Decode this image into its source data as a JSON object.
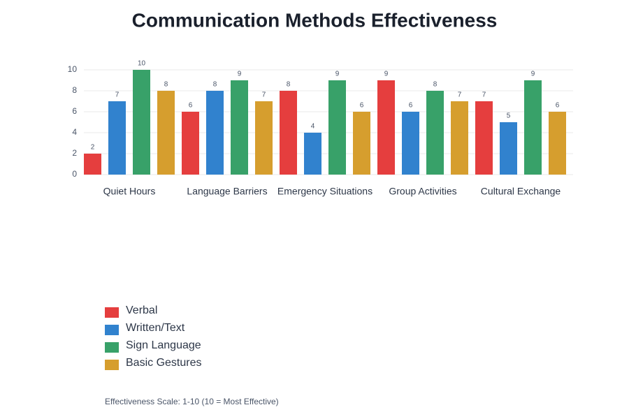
{
  "chart_data": {
    "type": "bar",
    "title": "Communication Methods Effectiveness",
    "categories": [
      "Quiet Hours",
      "Language Barriers",
      "Emergency Situations",
      "Group Activities",
      "Cultural Exchange"
    ],
    "series": [
      {
        "name": "Verbal",
        "color": "#e53e3e",
        "values": [
          2,
          6,
          8,
          9,
          7
        ]
      },
      {
        "name": "Written/Text",
        "color": "#3182ce",
        "values": [
          7,
          8,
          4,
          6,
          5
        ]
      },
      {
        "name": "Sign Language",
        "color": "#38a169",
        "values": [
          10,
          9,
          9,
          8,
          9
        ]
      },
      {
        "name": "Basic Gestures",
        "color": "#d69e2e",
        "values": [
          8,
          7,
          6,
          7,
          6
        ]
      }
    ],
    "ylim": [
      0,
      10
    ],
    "yticks": [
      0,
      2,
      4,
      6,
      8,
      10
    ],
    "grid": true,
    "footnote": "Effectiveness Scale: 1-10 (10 = Most Effective)"
  }
}
